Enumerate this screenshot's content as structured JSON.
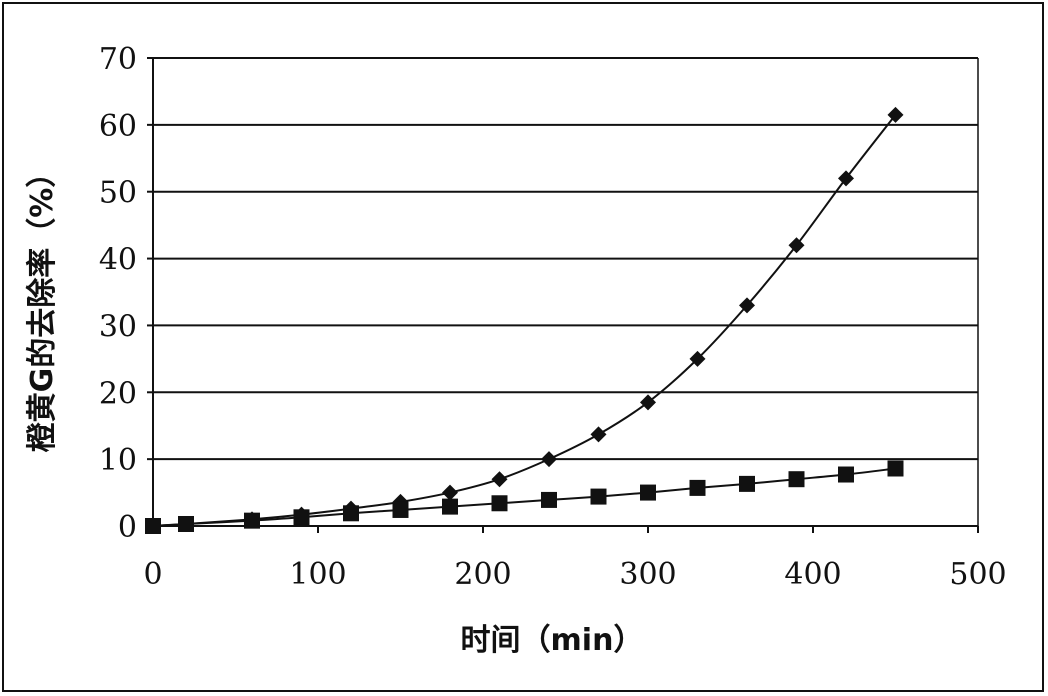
{
  "chart_data": {
    "type": "line",
    "title": "",
    "xlabel": "时间（min）",
    "ylabel": "橙黄G的去除率（%）",
    "xlim": [
      0,
      500
    ],
    "ylim": [
      0,
      70
    ],
    "xticks": [
      0,
      100,
      200,
      300,
      400,
      500
    ],
    "yticks": [
      0,
      10,
      20,
      30,
      40,
      50,
      60,
      70
    ],
    "grid": "horizontal",
    "legend": "none",
    "series": [
      {
        "marker": "diamond",
        "color": "#111111",
        "x": [
          0,
          20,
          60,
          90,
          120,
          150,
          180,
          210,
          240,
          270,
          300,
          330,
          360,
          390,
          420,
          450
        ],
        "y": [
          0,
          0.3,
          1.0,
          1.7,
          2.6,
          3.6,
          5.0,
          7.0,
          10.0,
          13.7,
          18.5,
          25.0,
          33.0,
          42.0,
          52.0,
          61.5
        ]
      },
      {
        "marker": "square",
        "color": "#111111",
        "x": [
          0,
          20,
          60,
          90,
          120,
          150,
          180,
          210,
          240,
          270,
          300,
          330,
          360,
          390,
          420,
          450
        ],
        "y": [
          0,
          0.3,
          0.8,
          1.3,
          1.9,
          2.4,
          2.9,
          3.4,
          3.9,
          4.4,
          5.0,
          5.7,
          6.3,
          7.0,
          7.7,
          8.6
        ]
      }
    ]
  }
}
